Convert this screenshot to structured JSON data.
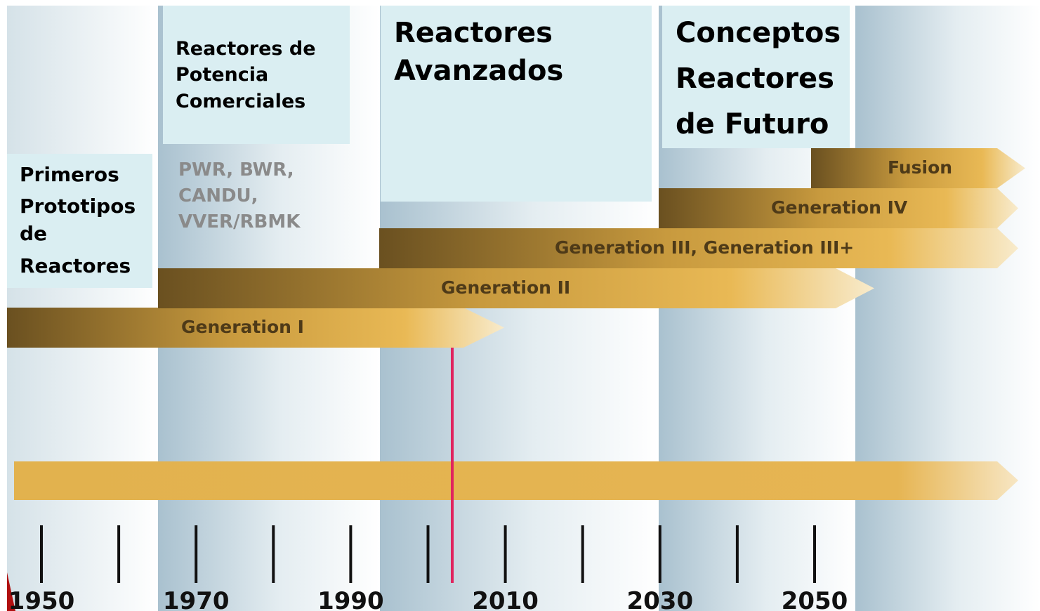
{
  "eras": [
    {
      "lines": [
        "Primeros",
        "Prototipos",
        "de",
        "Reactores"
      ]
    },
    {
      "lines": [
        "Reactores de",
        "Potencia",
        "Comerciales"
      ],
      "examples": [
        "PWR, BWR,",
        "CANDU,",
        "VVER/RBMK"
      ]
    },
    {
      "lines": [
        "Reactores",
        "Avanzados"
      ]
    },
    {
      "lines": [
        "Conceptos",
        "Reactores",
        "de Futuro"
      ]
    }
  ],
  "generations": [
    "Generation I",
    "Generation II",
    "Generation III, Generation III+",
    "Generation IV",
    "Fusion"
  ],
  "years": [
    "1950",
    "1970",
    "1990",
    "2010",
    "2030",
    "2050"
  ]
}
